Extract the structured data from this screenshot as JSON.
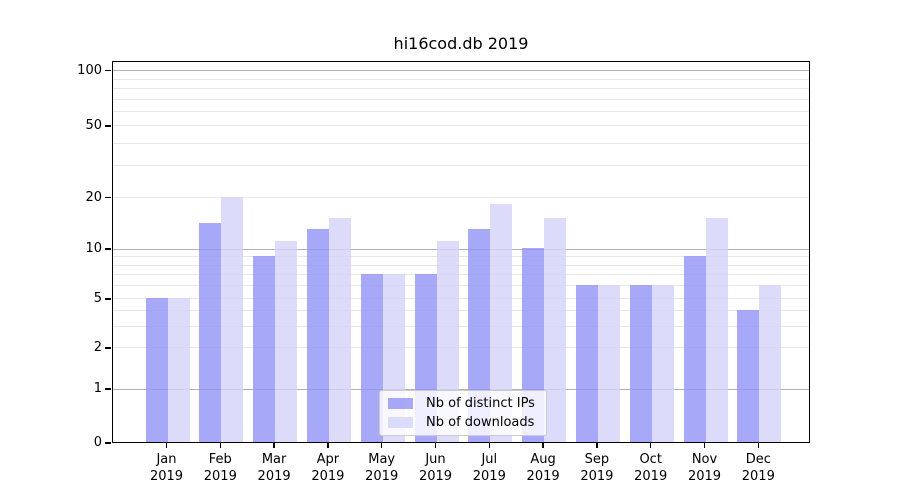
{
  "title": "hi16cod.db 2019",
  "chart_data": {
    "type": "bar",
    "categories": [
      "Jan",
      "Feb",
      "Mar",
      "Apr",
      "May",
      "Jun",
      "Jul",
      "Aug",
      "Sep",
      "Oct",
      "Nov",
      "Dec"
    ],
    "year_label": "2019",
    "series": [
      {
        "name": "Nb of distinct IPs",
        "color": "#a8a8f8",
        "values": [
          5,
          14,
          9,
          13,
          7,
          7,
          13,
          10,
          6,
          6,
          9,
          4
        ]
      },
      {
        "name": "Nb of downloads",
        "color": "#dcdcfa",
        "values": [
          5,
          20,
          11,
          15,
          7,
          11,
          18,
          15,
          6,
          6,
          15,
          6
        ]
      }
    ],
    "yticks": [
      0,
      1,
      2,
      5,
      10,
      20,
      50,
      100
    ],
    "minor_gridline_values": [
      2,
      3,
      4,
      5,
      6,
      7,
      8,
      9,
      20,
      30,
      40,
      50,
      60,
      70,
      80,
      90
    ],
    "major_gridline_values": [
      1,
      10,
      100
    ],
    "ylim": [
      0,
      100
    ],
    "xlabel": "",
    "ylabel": "",
    "scale": "log-like with linear 0-1 segment",
    "grid": true,
    "legend_position": "lower center"
  },
  "colors": {
    "series0": "#a8a8f8",
    "series1": "#dcdcfa",
    "major_grid": "#b2b2b2",
    "minor_grid": "#e8e8e8",
    "text": "#000000",
    "background": "#ffffff"
  }
}
